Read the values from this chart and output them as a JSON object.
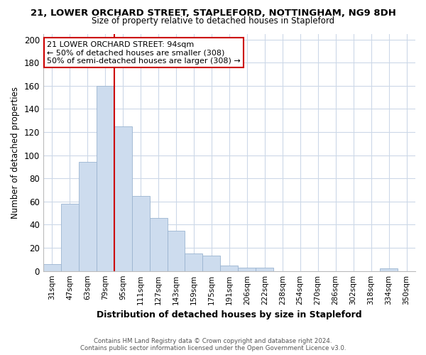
{
  "title_line1": "21, LOWER ORCHARD STREET, STAPLEFORD, NOTTINGHAM, NG9 8DH",
  "title_line2": "Size of property relative to detached houses in Stapleford",
  "xlabel": "Distribution of detached houses by size in Stapleford",
  "ylabel": "Number of detached properties",
  "bar_color": "#cddcee",
  "bar_edge_color": "#9ab4d0",
  "categories": [
    "31sqm",
    "47sqm",
    "63sqm",
    "79sqm",
    "95sqm",
    "111sqm",
    "127sqm",
    "143sqm",
    "159sqm",
    "175sqm",
    "191sqm",
    "206sqm",
    "222sqm",
    "238sqm",
    "254sqm",
    "270sqm",
    "286sqm",
    "302sqm",
    "318sqm",
    "334sqm",
    "350sqm"
  ],
  "values": [
    6,
    58,
    94,
    160,
    125,
    65,
    46,
    35,
    15,
    13,
    5,
    3,
    3,
    0,
    0,
    0,
    0,
    0,
    0,
    2,
    0
  ],
  "ylim": [
    0,
    205
  ],
  "yticks": [
    0,
    20,
    40,
    60,
    80,
    100,
    120,
    140,
    160,
    180,
    200
  ],
  "vline_index": 3.5,
  "vline_color": "#cc0000",
  "annotation_title": "21 LOWER ORCHARD STREET: 94sqm",
  "annotation_line1": "← 50% of detached houses are smaller (308)",
  "annotation_line2": "50% of semi-detached houses are larger (308) →",
  "annotation_box_color": "#ffffff",
  "annotation_box_edge": "#cc0000",
  "footer_line1": "Contains HM Land Registry data © Crown copyright and database right 2024.",
  "footer_line2": "Contains public sector information licensed under the Open Government Licence v3.0.",
  "background_color": "#ffffff",
  "grid_color": "#ccd8e8",
  "title1_fontsize": 9.5,
  "title2_fontsize": 8.5
}
